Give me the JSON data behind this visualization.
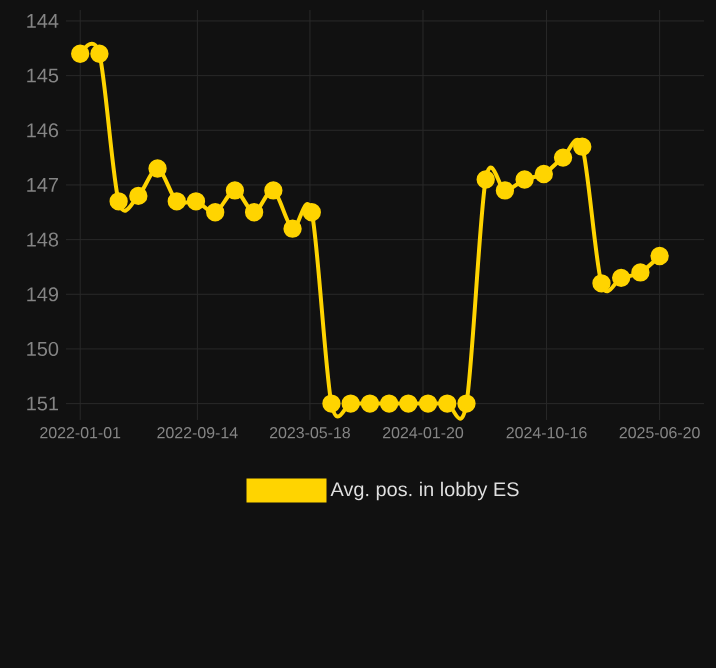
{
  "chart_data": {
    "type": "line",
    "x": [
      "2022-01-01",
      "2022-02-12",
      "2022-03-26",
      "2022-05-08",
      "2022-06-19",
      "2022-07-31",
      "2022-09-11",
      "2022-10-23",
      "2022-12-05",
      "2023-01-16",
      "2023-02-27",
      "2023-04-10",
      "2023-05-22",
      "2023-07-04",
      "2023-08-15",
      "2023-09-26",
      "2023-11-07",
      "2023-12-19",
      "2024-01-31",
      "2024-03-13",
      "2024-04-24",
      "2024-06-05",
      "2024-07-17",
      "2024-08-29",
      "2024-10-10",
      "2024-11-21",
      "2025-01-02",
      "2025-02-13",
      "2025-03-28",
      "2025-05-09",
      "2025-06-20"
    ],
    "series": [
      {
        "name": "Avg. pos. in lobby ES",
        "color": "#ffd400",
        "values": [
          144.6,
          144.6,
          147.3,
          147.2,
          146.7,
          147.3,
          147.3,
          147.5,
          147.1,
          147.5,
          147.1,
          147.8,
          147.5,
          151,
          151,
          151,
          151,
          151,
          151,
          151,
          151,
          146.9,
          147.1,
          146.9,
          146.8,
          146.5,
          146.3,
          148.8,
          148.7,
          148.6,
          148.3
        ]
      }
    ],
    "xlim": [
      "2021-12-01",
      "2025-09-25"
    ],
    "xticks": [
      "2022-01-01",
      "2022-09-14",
      "2023-05-18",
      "2024-01-20",
      "2024-10-16",
      "2025-06-20"
    ],
    "ylim": [
      151.3,
      143.8
    ],
    "yticks": [
      144,
      145,
      146,
      147,
      148,
      149,
      150,
      151
    ],
    "grid": true,
    "legend": "bottom",
    "marker": "circle",
    "line_style": "solid"
  }
}
